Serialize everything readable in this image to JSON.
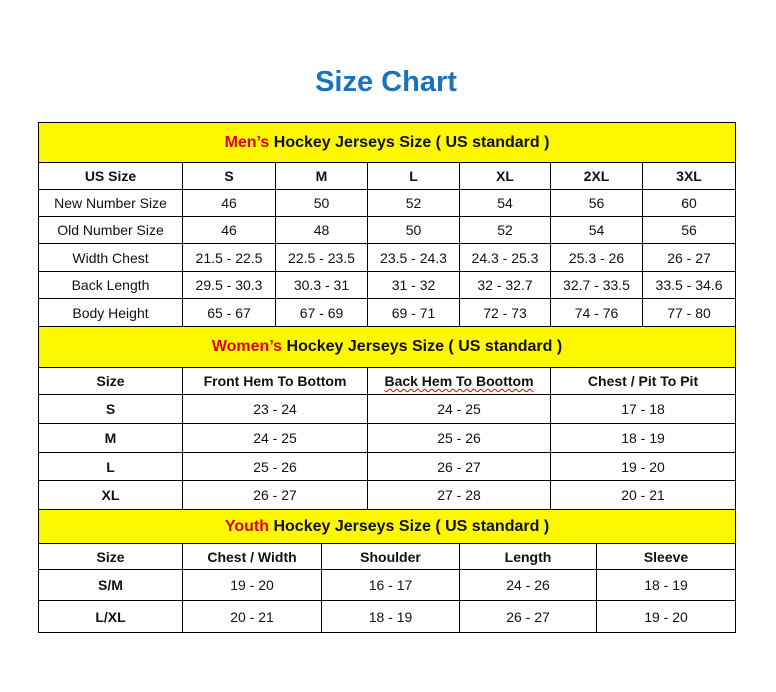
{
  "title": "Size Chart",
  "colors": {
    "title": "#1a72c0",
    "band": "#fdf700",
    "highlight": "#e0001b"
  },
  "men": {
    "highlight": "Men’s",
    "title": " Hockey Jerseys Size ( US standard )",
    "headers": [
      "US Size",
      "S",
      "M",
      "L",
      "XL",
      "2XL",
      "3XL"
    ],
    "rows": [
      [
        "New Number Size",
        "46",
        "50",
        "52",
        "54",
        "56",
        "60"
      ],
      [
        "Old Number Size",
        "46",
        "48",
        "50",
        "52",
        "54",
        "56"
      ],
      [
        "Width Chest",
        "21.5 - 22.5",
        "22.5 - 23.5",
        "23.5 - 24.3",
        "24.3 - 25.3",
        "25.3 - 26",
        "26 - 27"
      ],
      [
        "Back Length",
        "29.5 - 30.3",
        "30.3 - 31",
        "31 - 32",
        "32 - 32.7",
        "32.7 - 33.5",
        "33.5 - 34.6"
      ],
      [
        "Body Height",
        "65 - 67",
        "67 - 69",
        "69 - 71",
        "72 - 73",
        "74 - 76",
        "77 - 80"
      ]
    ]
  },
  "women": {
    "highlight": "Women’s",
    "title": " Hockey Jerseys Size ( US standard )",
    "headers": [
      "Size",
      "Front Hem To Bottom",
      "Back Hem To Boottom",
      "Chest / Pit To Pit"
    ],
    "rows": [
      [
        "S",
        "23 - 24",
        "24 - 25",
        "17 - 18"
      ],
      [
        "M",
        "24 - 25",
        "25 - 26",
        "18 - 19"
      ],
      [
        "L",
        "25 - 26",
        "26 - 27",
        "19 - 20"
      ],
      [
        "XL",
        "26 - 27",
        "27 - 28",
        "20 - 21"
      ]
    ]
  },
  "youth": {
    "highlight": "Youth",
    "title": " Hockey Jerseys Size ( US standard )",
    "headers": [
      "Size",
      "Chest / Width",
      "Shoulder",
      "Length",
      "Sleeve"
    ],
    "rows": [
      [
        "S/M",
        "19 - 20",
        "16 - 17",
        "24 - 26",
        "18 - 19"
      ],
      [
        "L/XL",
        "20 - 21",
        "18 - 19",
        "26 - 27",
        "19 - 20"
      ]
    ]
  }
}
